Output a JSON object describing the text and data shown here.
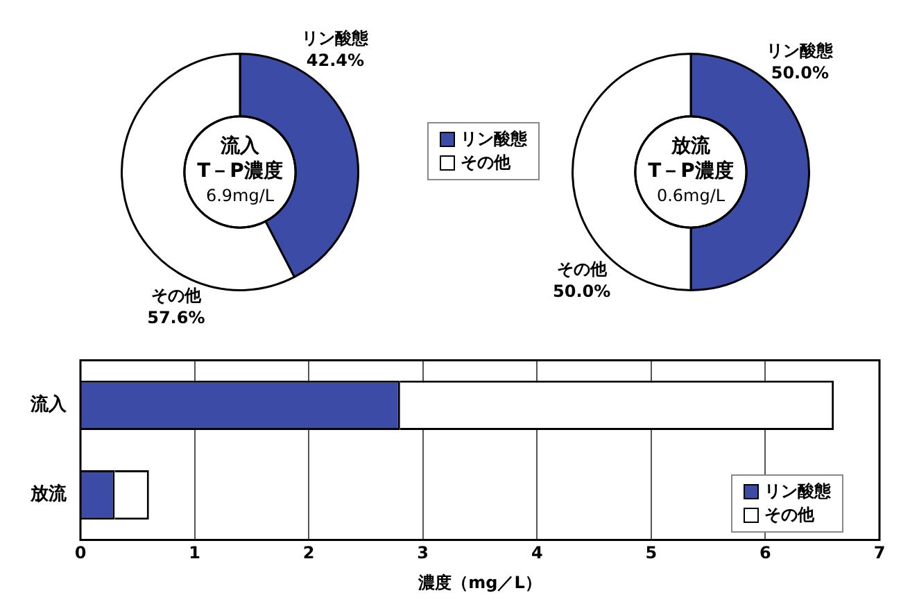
{
  "chart_data": [
    {
      "type": "donut",
      "categories": [
        "リン酸態",
        "その他"
      ],
      "values": [
        42.4,
        57.6
      ],
      "colors": [
        "#3b4ba6",
        "#ffffff"
      ],
      "value_labels": [
        "42.4%",
        "57.6%"
      ],
      "annotations": [
        "流入",
        "T－P濃度",
        "6.9mg/L"
      ],
      "legend": "right"
    },
    {
      "type": "donut",
      "categories": [
        "リン酸態",
        "その他"
      ],
      "values": [
        50.0,
        50.0
      ],
      "colors": [
        "#3b4ba6",
        "#ffffff"
      ],
      "value_labels": [
        "50.0%",
        "50.0%"
      ],
      "annotations": [
        "放流",
        "T－P濃度",
        "0.6mg/L"
      ]
    },
    {
      "type": "bar",
      "orientation": "horizontal",
      "stacked": true,
      "categories": [
        "流入",
        "放流"
      ],
      "series": [
        {
          "name": "リン酸態",
          "color": "#3b4ba6",
          "values": [
            2.8,
            0.3
          ]
        },
        {
          "name": "その他",
          "color": "#ffffff",
          "values": [
            3.8,
            0.3
          ]
        }
      ],
      "xlim": [
        0,
        7
      ],
      "xticks": [
        0,
        1,
        2,
        3,
        4,
        5,
        6,
        7
      ],
      "xlabel": "濃度（mg／L）",
      "grid": "x",
      "legend": "bottom right"
    }
  ]
}
